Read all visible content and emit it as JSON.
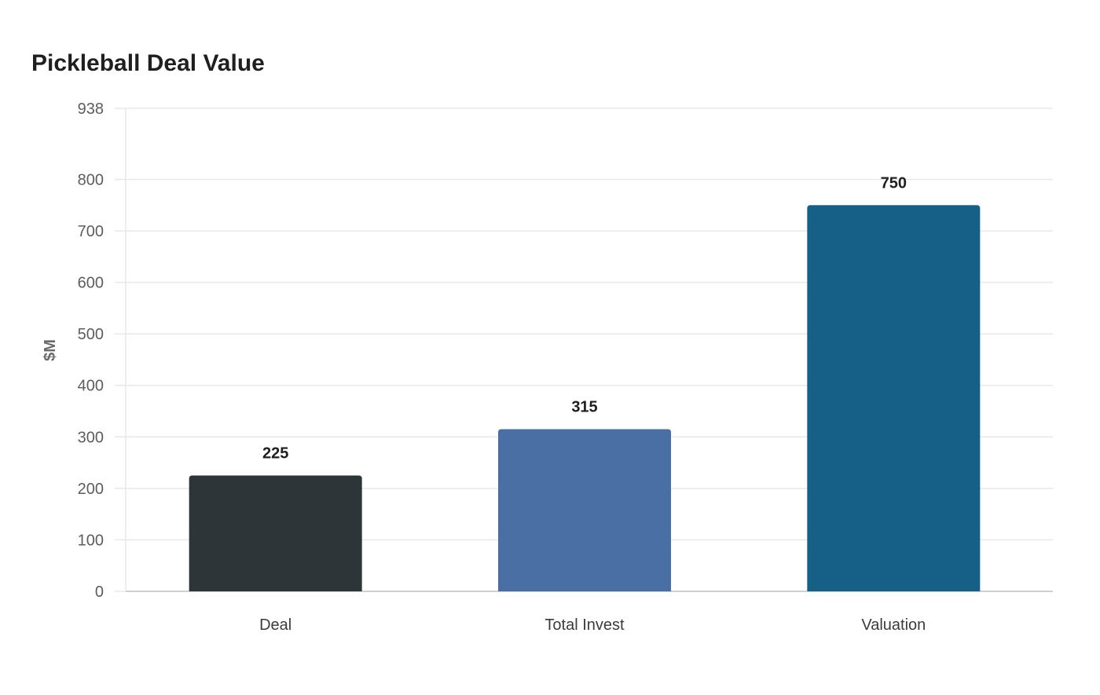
{
  "chart_data": {
    "type": "bar",
    "title": "Pickleball Deal Value",
    "xlabel": "",
    "ylabel": "$M",
    "categories": [
      "Deal",
      "Total Invest",
      "Valuation"
    ],
    "values": [
      225,
      315,
      750
    ],
    "value_labels": [
      "225",
      "315",
      "750"
    ],
    "colors": [
      "#2e3538",
      "#4a6fa5",
      "#166088"
    ],
    "ylim": [
      0,
      938
    ],
    "yticks": [
      0,
      100,
      200,
      300,
      400,
      500,
      600,
      700,
      800,
      938
    ],
    "grid": true,
    "legend": "none"
  }
}
